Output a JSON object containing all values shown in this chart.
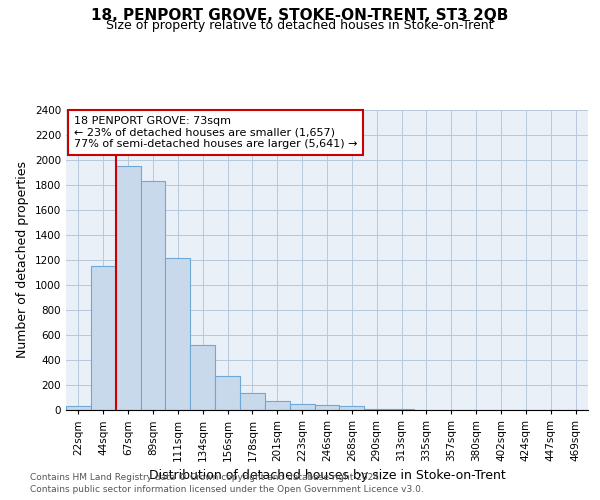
{
  "title": "18, PENPORT GROVE, STOKE-ON-TRENT, ST3 2QB",
  "subtitle": "Size of property relative to detached houses in Stoke-on-Trent",
  "xlabel": "Distribution of detached houses by size in Stoke-on-Trent",
  "ylabel": "Number of detached properties",
  "categories": [
    "22sqm",
    "44sqm",
    "67sqm",
    "89sqm",
    "111sqm",
    "134sqm",
    "156sqm",
    "178sqm",
    "201sqm",
    "223sqm",
    "246sqm",
    "268sqm",
    "290sqm",
    "313sqm",
    "335sqm",
    "357sqm",
    "380sqm",
    "402sqm",
    "424sqm",
    "447sqm",
    "469sqm"
  ],
  "values": [
    30,
    1150,
    1950,
    1830,
    1220,
    520,
    270,
    140,
    75,
    50,
    40,
    35,
    10,
    8,
    3,
    2,
    1,
    1,
    1,
    1,
    3
  ],
  "bar_color": "#c9d9ec",
  "bar_edge_color": "#6ea8d8",
  "red_line_x": 1.5,
  "ylim": [
    0,
    2400
  ],
  "yticks": [
    0,
    200,
    400,
    600,
    800,
    1000,
    1200,
    1400,
    1600,
    1800,
    2000,
    2200,
    2400
  ],
  "annotation_title": "18 PENPORT GROVE: 73sqm",
  "annotation_line1": "← 23% of detached houses are smaller (1,657)",
  "annotation_line2": "77% of semi-detached houses are larger (5,641) →",
  "annotation_box_color": "#ffffff",
  "annotation_box_edge": "#cc0000",
  "footer1": "Contains HM Land Registry data © Crown copyright and database right 2024.",
  "footer2": "Contains public sector information licensed under the Open Government Licence v3.0.",
  "background_color": "#ffffff",
  "plot_bg_color": "#eaf0f8",
  "grid_color": "#b8c8dc",
  "title_fontsize": 11,
  "subtitle_fontsize": 9,
  "axis_label_fontsize": 9,
  "tick_fontsize": 7.5,
  "annotation_fontsize": 8,
  "footer_fontsize": 6.5
}
